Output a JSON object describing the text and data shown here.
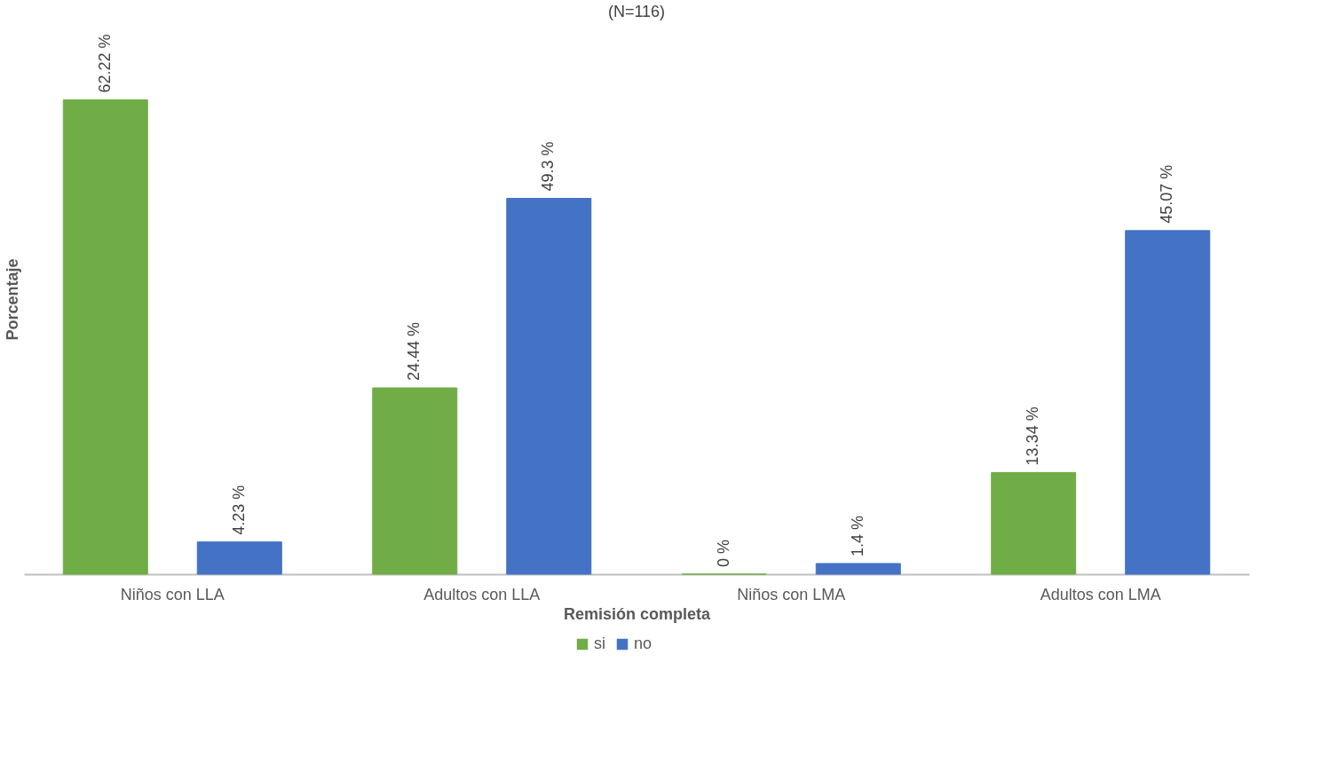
{
  "chart_data": {
    "type": "bar",
    "title": "(N=116)",
    "xlabel": "Remisión completa",
    "ylabel": "Porcentaje",
    "categories": [
      "Niños con LLA",
      "Adultos con LLA",
      "Niños con LMA",
      "Adultos con LMA"
    ],
    "series": [
      {
        "name": "si",
        "color": "#70ad47",
        "values": [
          62.22,
          24.44,
          0,
          13.34
        ],
        "value_labels": [
          "62.22 %",
          "24.44 %",
          "0 %",
          "13.34 %"
        ]
      },
      {
        "name": "no",
        "color": "#4472c4",
        "values": [
          4.23,
          49.3,
          1.4,
          45.07
        ],
        "value_labels": [
          "4.23 %",
          "49.3 %",
          "1.4 %",
          "45.07 %"
        ]
      }
    ],
    "legend": "bottom",
    "grid": false,
    "tick_labels": "x"
  }
}
